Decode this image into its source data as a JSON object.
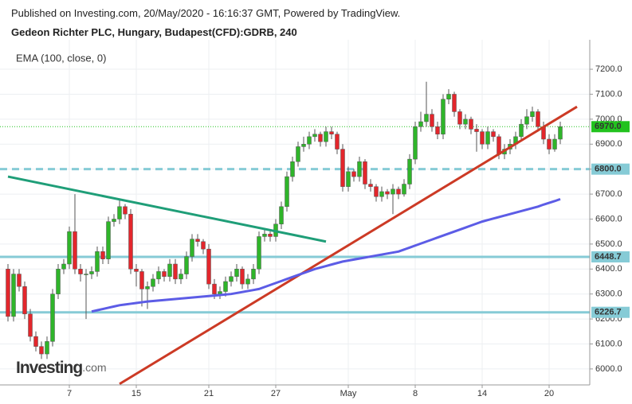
{
  "header": {
    "published": "Published on Investing.com, 20/May/2020 - 16:16:37 GMT, Powered by TradingView.",
    "symbol": "Gedeon Richter PLC, Hungary, Budapest(CFD):GDRB, 240"
  },
  "logo": {
    "brand": "Investing",
    "suffix": ".com"
  },
  "chart_data": {
    "type": "candlestick",
    "up_color": "#2fb52a",
    "down_color": "#e3262c",
    "ylim": [
      5936,
      7318
    ],
    "yticks": [
      {
        "value": 6000,
        "label": "6000.0"
      },
      {
        "value": 6100,
        "label": "6100.0"
      },
      {
        "value": 6200,
        "label": "6200.0"
      },
      {
        "value": 6300,
        "label": "6300.0"
      },
      {
        "value": 6400,
        "label": "6400.0"
      },
      {
        "value": 6500,
        "label": "6500.0"
      },
      {
        "value": 6600,
        "label": "6600.0"
      },
      {
        "value": 6700,
        "label": "6700.0"
      },
      {
        "value": 6800,
        "label": "6800.0"
      },
      {
        "value": 6900,
        "label": "6900.0"
      },
      {
        "value": 7000,
        "label": "7000.0"
      },
      {
        "value": 7100,
        "label": "7100.0"
      },
      {
        "value": 7200,
        "label": "7200.0"
      }
    ],
    "grid": true,
    "categories": [
      null,
      null,
      null,
      null,
      null,
      null,
      null,
      null,
      null,
      null,
      null,
      "7",
      null,
      null,
      null,
      null,
      null,
      null,
      null,
      null,
      null,
      null,
      null,
      "15",
      null,
      null,
      null,
      null,
      null,
      null,
      null,
      null,
      null,
      null,
      null,
      null,
      "21",
      null,
      null,
      null,
      null,
      null,
      null,
      null,
      null,
      null,
      null,
      null,
      "27",
      null,
      null,
      null,
      null,
      null,
      null,
      null,
      null,
      null,
      null,
      null,
      null,
      "May",
      null,
      null,
      null,
      null,
      null,
      null,
      null,
      null,
      null,
      null,
      null,
      "8",
      null,
      null,
      null,
      null,
      null,
      null,
      null,
      null,
      null,
      null,
      null,
      "14",
      null,
      null,
      null,
      null,
      null,
      null,
      null,
      null,
      null,
      null,
      null,
      "20",
      null,
      null
    ],
    "candles": [
      [
        6400,
        6420,
        6190,
        6210
      ],
      [
        6210,
        6400,
        6190,
        6380
      ],
      [
        6380,
        6400,
        6310,
        6330
      ],
      [
        6330,
        6350,
        6200,
        6220
      ],
      [
        6220,
        6240,
        6110,
        6130
      ],
      [
        6130,
        6150,
        6070,
        6090
      ],
      [
        6090,
        6110,
        6040,
        6060
      ],
      [
        6060,
        6130,
        6040,
        6110
      ],
      [
        6110,
        6320,
        6090,
        6300
      ],
      [
        6300,
        6420,
        6280,
        6400
      ],
      [
        6400,
        6440,
        6380,
        6420
      ],
      [
        6420,
        6570,
        6400,
        6550
      ],
      [
        6550,
        6700,
        6380,
        6400
      ],
      [
        6400,
        6420,
        6350,
        6380
      ],
      [
        6380,
        6400,
        6200,
        6380
      ],
      [
        6380,
        6410,
        6360,
        6390
      ],
      [
        6390,
        6490,
        6370,
        6470
      ],
      [
        6470,
        6490,
        6420,
        6440
      ],
      [
        6440,
        6610,
        6420,
        6590
      ],
      [
        6590,
        6620,
        6570,
        6600
      ],
      [
        6600,
        6680,
        6580,
        6650
      ],
      [
        6650,
        6660,
        6600,
        6620
      ],
      [
        6620,
        6640,
        6380,
        6400
      ],
      [
        6400,
        6420,
        6330,
        6390
      ],
      [
        6390,
        6400,
        6250,
        6320
      ],
      [
        6320,
        6350,
        6240,
        6330
      ],
      [
        6330,
        6380,
        6310,
        6360
      ],
      [
        6360,
        6410,
        6340,
        6390
      ],
      [
        6390,
        6400,
        6350,
        6370
      ],
      [
        6370,
        6440,
        6350,
        6420
      ],
      [
        6420,
        6440,
        6340,
        6360
      ],
      [
        6360,
        6400,
        6340,
        6380
      ],
      [
        6380,
        6470,
        6360,
        6450
      ],
      [
        6450,
        6540,
        6430,
        6520
      ],
      [
        6520,
        6540,
        6490,
        6510
      ],
      [
        6510,
        6520,
        6460,
        6480
      ],
      [
        6480,
        6500,
        6320,
        6340
      ],
      [
        6340,
        6360,
        6280,
        6300
      ],
      [
        6300,
        6330,
        6280,
        6310
      ],
      [
        6310,
        6370,
        6290,
        6350
      ],
      [
        6350,
        6390,
        6330,
        6370
      ],
      [
        6370,
        6420,
        6350,
        6400
      ],
      [
        6400,
        6410,
        6320,
        6340
      ],
      [
        6340,
        6380,
        6320,
        6360
      ],
      [
        6360,
        6420,
        6340,
        6400
      ],
      [
        6400,
        6550,
        6380,
        6530
      ],
      [
        6530,
        6560,
        6510,
        6540
      ],
      [
        6540,
        6550,
        6510,
        6530
      ],
      [
        6530,
        6600,
        6510,
        6580
      ],
      [
        6580,
        6670,
        6560,
        6650
      ],
      [
        6650,
        6790,
        6630,
        6770
      ],
      [
        6770,
        6850,
        6750,
        6830
      ],
      [
        6830,
        6910,
        6810,
        6890
      ],
      [
        6890,
        6930,
        6870,
        6900
      ],
      [
        6900,
        6950,
        6880,
        6930
      ],
      [
        6930,
        6960,
        6910,
        6940
      ],
      [
        6940,
        6950,
        6890,
        6910
      ],
      [
        6910,
        6970,
        6890,
        6950
      ],
      [
        6950,
        6970,
        6920,
        6940
      ],
      [
        6940,
        6950,
        6860,
        6880
      ],
      [
        6880,
        6900,
        6710,
        6730
      ],
      [
        6730,
        6810,
        6710,
        6790
      ],
      [
        6790,
        6800,
        6750,
        6770
      ],
      [
        6770,
        6850,
        6750,
        6830
      ],
      [
        6830,
        6840,
        6720,
        6740
      ],
      [
        6740,
        6760,
        6710,
        6730
      ],
      [
        6730,
        6740,
        6670,
        6690
      ],
      [
        6690,
        6730,
        6670,
        6710
      ],
      [
        6710,
        6720,
        6680,
        6700
      ],
      [
        6700,
        6740,
        6620,
        6720
      ],
      [
        6720,
        6730,
        6680,
        6700
      ],
      [
        6700,
        6760,
        6690,
        6740
      ],
      [
        6740,
        6860,
        6720,
        6840
      ],
      [
        6840,
        6990,
        6820,
        6970
      ],
      [
        6970,
        7030,
        6950,
        6990
      ],
      [
        6990,
        7150,
        6970,
        7020
      ],
      [
        7020,
        7040,
        6950,
        6970
      ],
      [
        6970,
        6990,
        6920,
        6940
      ],
      [
        6940,
        7100,
        6920,
        7080
      ],
      [
        7080,
        7120,
        7060,
        7100
      ],
      [
        7100,
        7110,
        7010,
        7030
      ],
      [
        7030,
        7040,
        6960,
        6980
      ],
      [
        6980,
        7020,
        6960,
        7000
      ],
      [
        7000,
        7010,
        6940,
        6960
      ],
      [
        6960,
        6980,
        6870,
        6950
      ],
      [
        6950,
        6960,
        6880,
        6900
      ],
      [
        6900,
        6970,
        6880,
        6950
      ],
      [
        6950,
        6960,
        6910,
        6930
      ],
      [
        6930,
        6940,
        6840,
        6860
      ],
      [
        6860,
        6900,
        6840,
        6880
      ],
      [
        6880,
        6920,
        6860,
        6900
      ],
      [
        6900,
        6950,
        6880,
        6930
      ],
      [
        6930,
        7000,
        6910,
        6980
      ],
      [
        6980,
        7040,
        6960,
        7010
      ],
      [
        7010,
        7050,
        6990,
        7030
      ],
      [
        7030,
        7040,
        6950,
        6970
      ],
      [
        6970,
        6990,
        6900,
        6920
      ],
      [
        6920,
        6940,
        6860,
        6880
      ],
      [
        6880,
        6940,
        6870,
        6920
      ],
      [
        6920,
        6990,
        6900,
        6970
      ]
    ],
    "ema": {
      "name": "EMA (100, close, 0)",
      "color": "#5c5ce6",
      "values": [
        null,
        null,
        null,
        null,
        null,
        null,
        null,
        null,
        null,
        null,
        null,
        null,
        null,
        null,
        null,
        6230,
        6235,
        6240,
        6245,
        6250,
        6255,
        6258,
        6261,
        6264,
        6267,
        6270,
        6272,
        6274,
        6276,
        6278,
        6280,
        6282,
        6284,
        6286,
        6288,
        6290,
        6292,
        6294,
        6296,
        6298,
        6300,
        6304,
        6308,
        6312,
        6316,
        6320,
        6328,
        6336,
        6344,
        6352,
        6360,
        6368,
        6376,
        6384,
        6392,
        6400,
        6406,
        6412,
        6418,
        6424,
        6430,
        6434,
        6438,
        6442,
        6446,
        6450,
        6454,
        6458,
        6462,
        6466,
        6470,
        6478,
        6486,
        6494,
        6502,
        6510,
        6518,
        6526,
        6534,
        6542,
        6550,
        6558,
        6566,
        6574,
        6582,
        6590,
        6596,
        6602,
        6608,
        6614,
        6620,
        6626,
        6632,
        6638,
        6644,
        6650,
        6658,
        6665,
        6672,
        6680
      ]
    },
    "trendlines": [
      {
        "color": "#1f9e78",
        "x": [
          0,
          57
        ],
        "values": [
          6770,
          6510
        ]
      },
      {
        "color": "#cc3a25",
        "x": [
          20,
          102
        ],
        "values": [
          5940,
          7050
        ]
      }
    ],
    "levels": [
      {
        "value": 6970,
        "label": "6970.0",
        "color": "#22c21e",
        "style": "dotted"
      },
      {
        "value": 6800,
        "label": "6800.0",
        "color": "#86cbd6",
        "style": "dashed"
      },
      {
        "value": 6448.7,
        "label": "6448.7",
        "color": "#86cbd6",
        "style": "solid"
      },
      {
        "value": 6226.7,
        "label": "6226.7",
        "color": "#86cbd6",
        "style": "solid"
      }
    ]
  }
}
